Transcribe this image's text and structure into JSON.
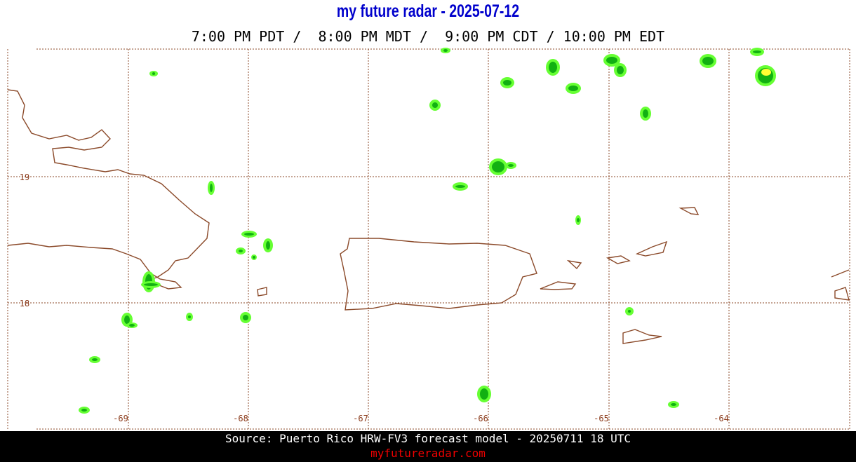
{
  "header": {
    "title": "my future radar - 2025-07-12",
    "times": "7:00 PM PDT /  8:00 PM MDT /  9:00 PM CDT / 10:00 PM EDT"
  },
  "map": {
    "lon_labels": [
      "-69",
      "-68",
      "-67",
      "-66",
      "-65",
      "-64"
    ],
    "lat_labels": [
      "19",
      "18"
    ]
  },
  "footer": {
    "source": "Source: Puerto Rico HRW-FV3 forecast model - 20250711 18 UTC",
    "url": "myfutureradar.com"
  }
}
